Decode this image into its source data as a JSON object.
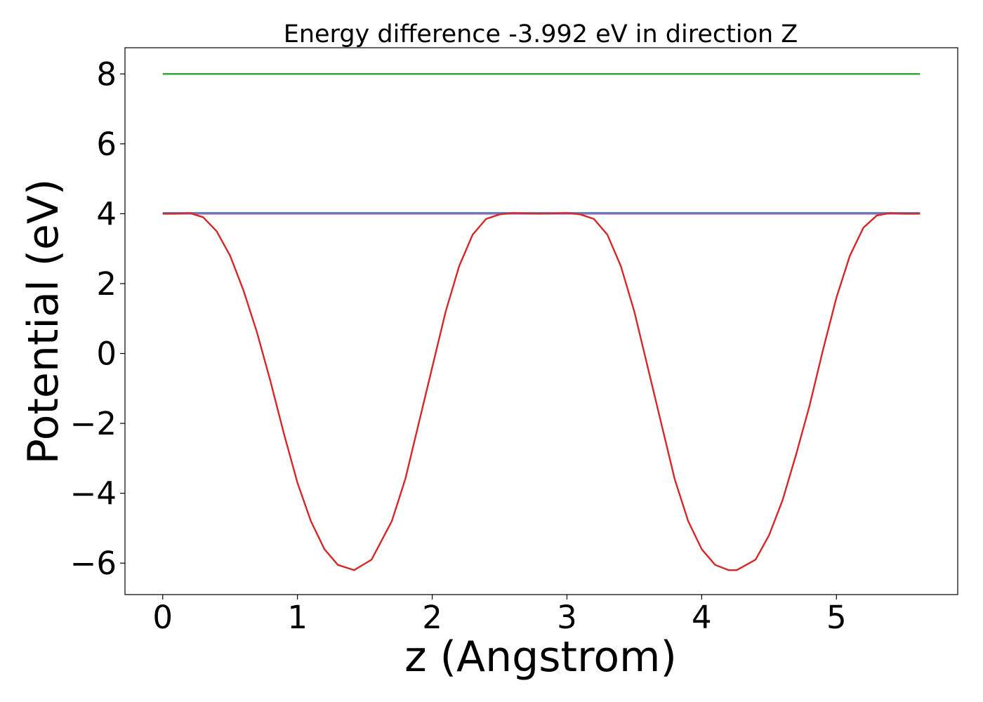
{
  "chart_data": {
    "type": "line",
    "title": "Energy difference -3.992 eV in direction Z",
    "xlabel": "z (Angstrom)",
    "ylabel": "Potential (eV)",
    "xlim": [
      -0.28,
      5.9
    ],
    "ylim": [
      -6.9,
      8.75
    ],
    "xticks": [
      0,
      1,
      2,
      3,
      4,
      5
    ],
    "xtick_labels": [
      "0",
      "1",
      "2",
      "3",
      "4",
      "5"
    ],
    "yticks": [
      -6,
      -4,
      -2,
      0,
      2,
      4,
      6,
      8
    ],
    "ytick_labels": [
      "−6",
      "−4",
      "−2",
      "0",
      "2",
      "4",
      "6",
      "8"
    ],
    "grid": false,
    "legend": "none",
    "series": [
      {
        "color": "#2ca02c",
        "x": [
          0,
          5.62
        ],
        "y": [
          8.0,
          8.0
        ]
      },
      {
        "color": "#1f77b4",
        "x": [
          0,
          5.62
        ],
        "y": [
          4.02,
          4.02
        ]
      },
      {
        "color": "#9467bd",
        "x": [
          0,
          5.62
        ],
        "y": [
          4.0,
          4.0
        ]
      },
      {
        "color": "#d62728",
        "x": [
          0.0,
          0.1,
          0.2,
          0.3,
          0.4,
          0.5,
          0.6,
          0.7,
          0.8,
          0.9,
          1.0,
          1.1,
          1.2,
          1.3,
          1.42,
          1.55,
          1.7,
          1.8,
          1.9,
          2.0,
          2.1,
          2.2,
          2.3,
          2.4,
          2.5,
          2.6,
          2.8,
          3.0,
          3.1,
          3.2,
          3.3,
          3.4,
          3.5,
          3.6,
          3.7,
          3.8,
          3.9,
          4.0,
          4.1,
          4.2,
          4.26,
          4.4,
          4.5,
          4.6,
          4.7,
          4.8,
          4.9,
          5.0,
          5.1,
          5.2,
          5.3,
          5.4,
          5.5,
          5.62
        ],
        "y": [
          4.0,
          4.0,
          4.02,
          3.9,
          3.5,
          2.8,
          1.8,
          0.6,
          -0.8,
          -2.3,
          -3.7,
          -4.8,
          -5.6,
          -6.05,
          -6.2,
          -5.9,
          -4.8,
          -3.6,
          -2.0,
          -0.4,
          1.2,
          2.5,
          3.4,
          3.85,
          3.98,
          4.02,
          4.0,
          4.02,
          3.98,
          3.85,
          3.4,
          2.5,
          1.2,
          -0.4,
          -2.0,
          -3.6,
          -4.8,
          -5.6,
          -6.05,
          -6.2,
          -6.2,
          -5.9,
          -5.2,
          -4.2,
          -2.9,
          -1.5,
          0.1,
          1.6,
          2.8,
          3.6,
          3.95,
          4.02,
          4.0,
          4.0
        ]
      }
    ]
  }
}
